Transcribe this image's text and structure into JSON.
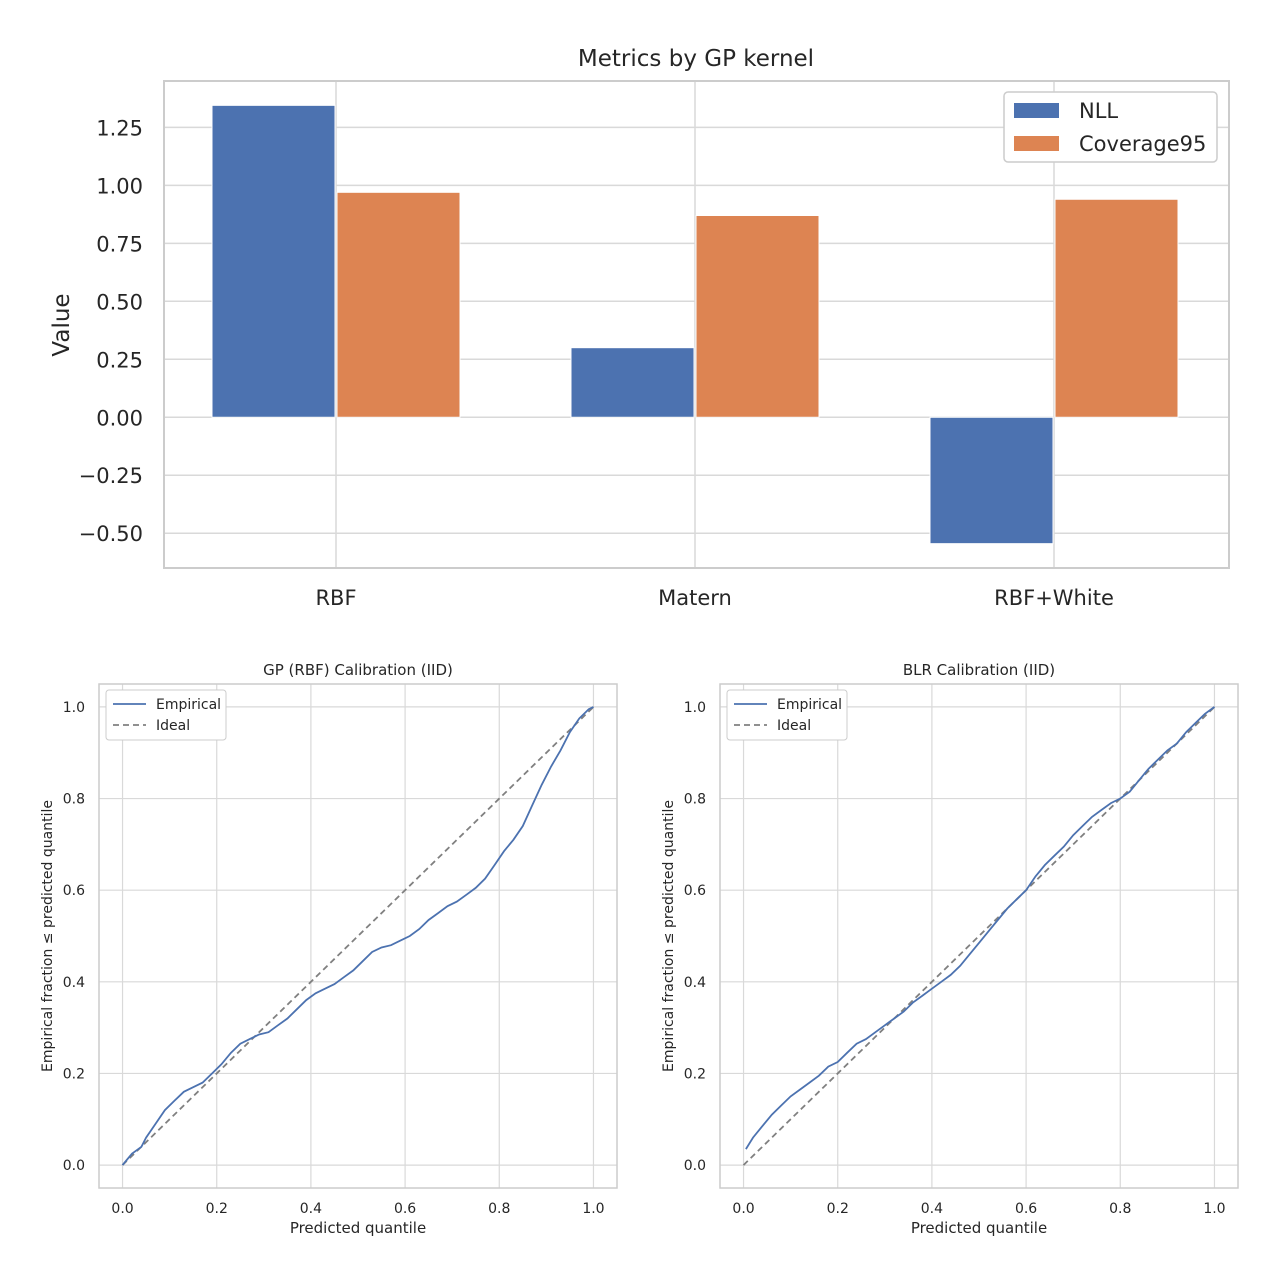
{
  "chart_data": [
    {
      "type": "bar",
      "title": "Metrics by GP kernel",
      "xlabel": "",
      "ylabel": "Value",
      "categories": [
        "RBF",
        "Matern",
        "RBF+White"
      ],
      "series": [
        {
          "name": "NLL",
          "values": [
            1.345,
            0.3,
            -0.545
          ],
          "color": "#4c72b0"
        },
        {
          "name": "Coverage95",
          "values": [
            0.97,
            0.87,
            0.94
          ],
          "color": "#dd8452"
        }
      ],
      "ylim": [
        -0.65,
        1.45
      ],
      "yticks": [
        -0.5,
        -0.25,
        0.0,
        0.25,
        0.5,
        0.75,
        1.0,
        1.25
      ],
      "ytick_labels": [
        "−0.50",
        "−0.25",
        "0.00",
        "0.25",
        "0.50",
        "0.75",
        "1.00",
        "1.25"
      ],
      "grid": true,
      "legend_position": "top-right"
    },
    {
      "type": "line",
      "title": "GP (RBF) Calibration (IID)",
      "xlabel": "Predicted quantile",
      "ylabel": "Empirical fraction ≤ predicted quantile",
      "xlim": [
        -0.05,
        1.05
      ],
      "ylim": [
        -0.05,
        1.05
      ],
      "xticks": [
        0.0,
        0.2,
        0.4,
        0.6,
        0.8,
        1.0
      ],
      "xtick_labels": [
        "0.0",
        "0.2",
        "0.4",
        "0.6",
        "0.8",
        "1.0"
      ],
      "yticks": [
        0.0,
        0.2,
        0.4,
        0.6,
        0.8,
        1.0
      ],
      "ytick_labels": [
        "0.0",
        "0.2",
        "0.4",
        "0.6",
        "0.8",
        "1.0"
      ],
      "grid": true,
      "legend_position": "top-left",
      "series": [
        {
          "name": "Empirical",
          "style": "solid",
          "color": "#4c72b0",
          "x": [
            0.0,
            0.02,
            0.04,
            0.05,
            0.07,
            0.09,
            0.11,
            0.13,
            0.15,
            0.17,
            0.19,
            0.21,
            0.23,
            0.25,
            0.27,
            0.29,
            0.31,
            0.33,
            0.35,
            0.37,
            0.39,
            0.41,
            0.43,
            0.45,
            0.47,
            0.49,
            0.51,
            0.53,
            0.55,
            0.57,
            0.59,
            0.61,
            0.63,
            0.65,
            0.67,
            0.69,
            0.71,
            0.73,
            0.75,
            0.77,
            0.79,
            0.81,
            0.83,
            0.85,
            0.87,
            0.89,
            0.91,
            0.93,
            0.95,
            0.97,
            0.99,
            1.0
          ],
          "y": [
            0.0,
            0.025,
            0.04,
            0.06,
            0.09,
            0.12,
            0.14,
            0.16,
            0.17,
            0.18,
            0.2,
            0.22,
            0.245,
            0.265,
            0.275,
            0.285,
            0.29,
            0.305,
            0.32,
            0.34,
            0.36,
            0.375,
            0.385,
            0.395,
            0.41,
            0.425,
            0.445,
            0.465,
            0.475,
            0.48,
            0.49,
            0.5,
            0.515,
            0.535,
            0.55,
            0.565,
            0.575,
            0.59,
            0.605,
            0.625,
            0.655,
            0.685,
            0.71,
            0.74,
            0.785,
            0.83,
            0.87,
            0.905,
            0.945,
            0.975,
            0.995,
            1.0
          ]
        },
        {
          "name": "Ideal",
          "style": "dashed",
          "color": "#808080",
          "x": [
            0.0,
            1.0
          ],
          "y": [
            0.0,
            1.0
          ]
        }
      ]
    },
    {
      "type": "line",
      "title": "BLR Calibration (IID)",
      "xlabel": "Predicted quantile",
      "ylabel": "Empirical fraction ≤ predicted quantile",
      "xlim": [
        -0.05,
        1.05
      ],
      "ylim": [
        -0.05,
        1.05
      ],
      "xticks": [
        0.0,
        0.2,
        0.4,
        0.6,
        0.8,
        1.0
      ],
      "xtick_labels": [
        "0.0",
        "0.2",
        "0.4",
        "0.6",
        "0.8",
        "1.0"
      ],
      "yticks": [
        0.0,
        0.2,
        0.4,
        0.6,
        0.8,
        1.0
      ],
      "ytick_labels": [
        "0.0",
        "0.2",
        "0.4",
        "0.6",
        "0.8",
        "1.0"
      ],
      "grid": true,
      "legend_position": "top-left",
      "series": [
        {
          "name": "Empirical",
          "style": "solid",
          "color": "#4c72b0",
          "x": [
            0.005,
            0.02,
            0.04,
            0.06,
            0.08,
            0.1,
            0.12,
            0.14,
            0.16,
            0.18,
            0.2,
            0.22,
            0.24,
            0.26,
            0.28,
            0.3,
            0.32,
            0.34,
            0.36,
            0.38,
            0.4,
            0.42,
            0.44,
            0.46,
            0.48,
            0.5,
            0.52,
            0.54,
            0.56,
            0.58,
            0.6,
            0.62,
            0.64,
            0.66,
            0.68,
            0.7,
            0.72,
            0.74,
            0.76,
            0.78,
            0.8,
            0.82,
            0.84,
            0.86,
            0.88,
            0.9,
            0.92,
            0.94,
            0.96,
            0.98,
            1.0
          ],
          "y": [
            0.035,
            0.06,
            0.085,
            0.11,
            0.13,
            0.15,
            0.165,
            0.18,
            0.195,
            0.215,
            0.225,
            0.245,
            0.265,
            0.275,
            0.29,
            0.305,
            0.32,
            0.335,
            0.355,
            0.37,
            0.385,
            0.4,
            0.415,
            0.435,
            0.46,
            0.485,
            0.51,
            0.535,
            0.56,
            0.58,
            0.6,
            0.63,
            0.655,
            0.675,
            0.695,
            0.72,
            0.74,
            0.76,
            0.775,
            0.79,
            0.8,
            0.815,
            0.84,
            0.865,
            0.885,
            0.905,
            0.92,
            0.945,
            0.965,
            0.985,
            1.0
          ]
        },
        {
          "name": "Ideal",
          "style": "dashed",
          "color": "#808080",
          "x": [
            0.0,
            1.0
          ],
          "y": [
            0.0,
            1.0
          ]
        }
      ]
    }
  ]
}
